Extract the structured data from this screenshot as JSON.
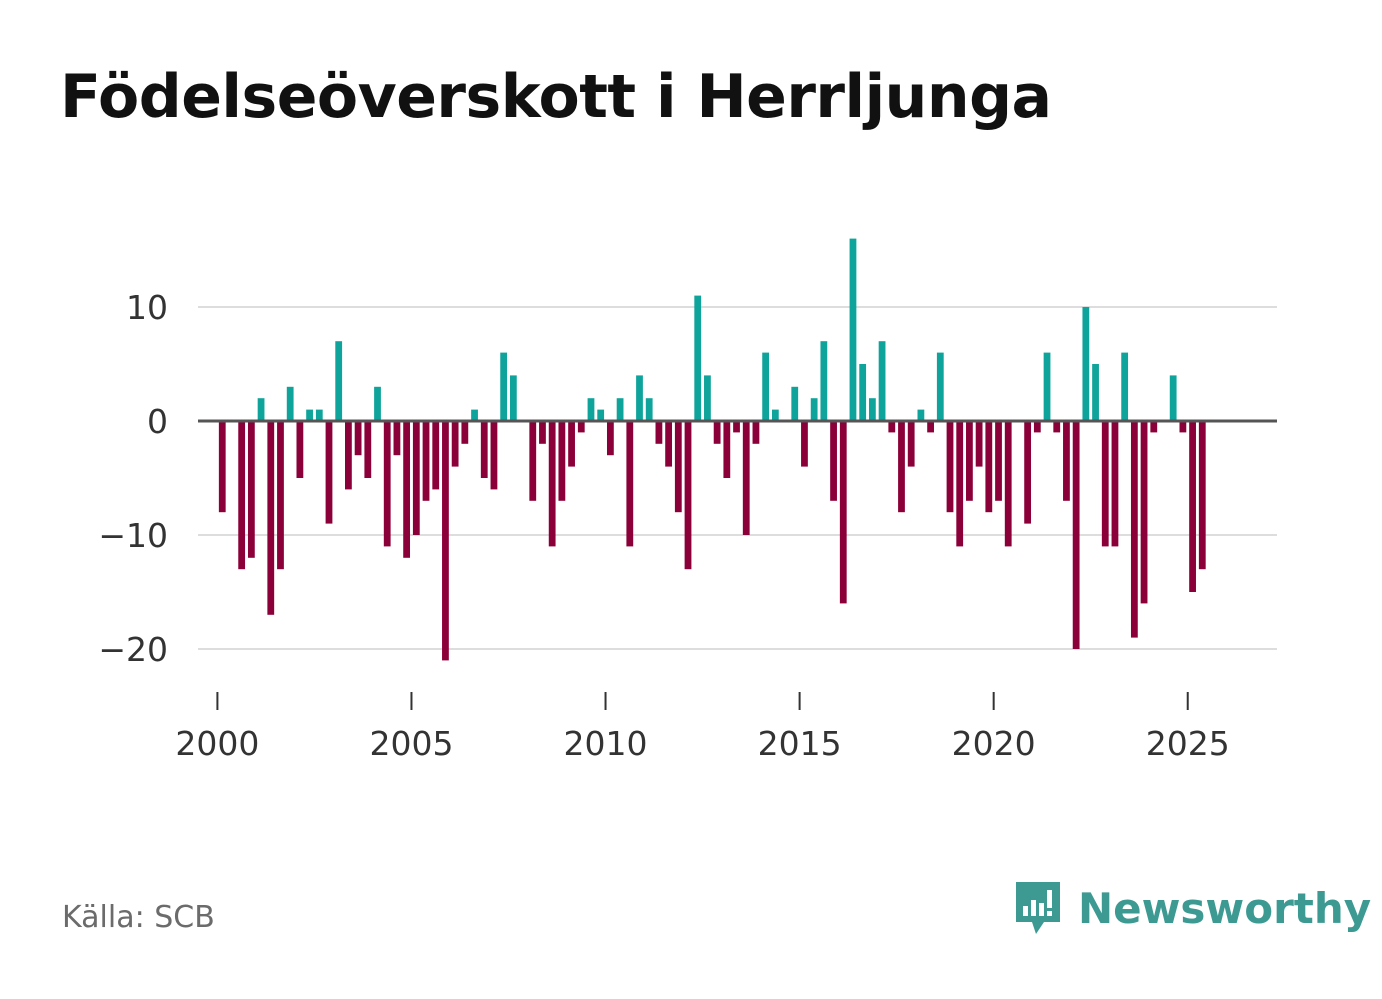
{
  "title": "Födelseöverskott i Herrljunga",
  "source": "Källa: SCB",
  "brand": {
    "name": "Newsworthy",
    "icon": "newsworthy-logo-icon"
  },
  "colors": {
    "positive": "#0fa49b",
    "negative": "#8c0039",
    "zero_line": "#555555",
    "grid": "#dddddd",
    "brand": "#3d9a93"
  },
  "chart_data": {
    "type": "bar",
    "title": "Födelseöverskott i Herrljunga",
    "xlabel": "",
    "ylabel": "",
    "frequency": "quarterly",
    "start": {
      "year": 2000,
      "quarter": 1
    },
    "xlim": [
      1999.5,
      2027.3
    ],
    "ylim": [
      -23,
      17
    ],
    "yticks": [
      10,
      0,
      -10,
      -20
    ],
    "ytick_labels": [
      "10",
      "0",
      "−10",
      "−20"
    ],
    "xticks": [
      2000,
      2005,
      2010,
      2015,
      2020,
      2025
    ],
    "xtick_labels": [
      "2000",
      "2005",
      "2010",
      "2015",
      "2020",
      "2025"
    ],
    "values": [
      -8,
      0,
      -13,
      -12,
      2,
      -17,
      -13,
      3,
      -5,
      1,
      1,
      -9,
      7,
      -6,
      -3,
      -5,
      3,
      -11,
      -3,
      -12,
      -10,
      -7,
      -6,
      -21,
      -4,
      -2,
      1,
      -5,
      -6,
      6,
      4,
      0,
      -7,
      -2,
      -11,
      -7,
      -4,
      -1,
      2,
      1,
      -3,
      2,
      -11,
      4,
      2,
      -2,
      -4,
      -8,
      -13,
      11,
      4,
      -2,
      -5,
      -1,
      -10,
      -2,
      6,
      1,
      0,
      3,
      -4,
      2,
      7,
      -7,
      -16,
      16,
      5,
      2,
      7,
      -1,
      -8,
      -4,
      1,
      -1,
      6,
      -8,
      -11,
      -7,
      -4,
      -8,
      -7,
      -11,
      0,
      -9,
      -1,
      6,
      -1,
      -7,
      -20,
      10,
      5,
      -11,
      -11,
      6,
      -19,
      -16,
      -1,
      0,
      4,
      -1,
      -15,
      -13
    ]
  }
}
